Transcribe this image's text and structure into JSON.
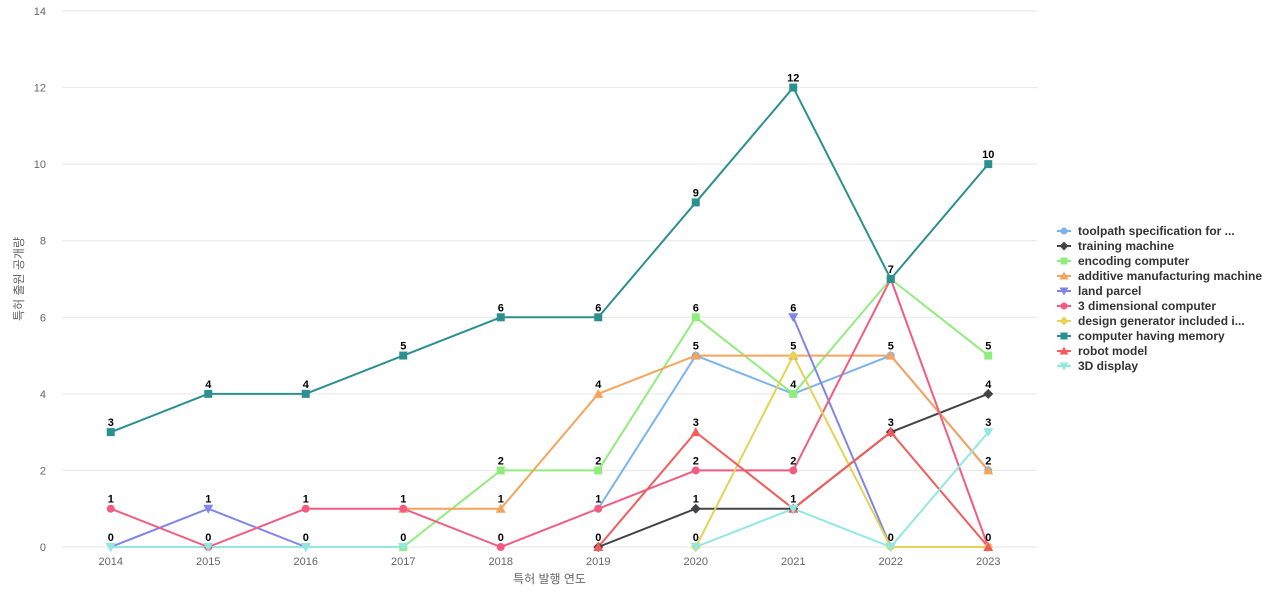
{
  "chart_data": {
    "type": "line",
    "title": "",
    "xlabel": "특허 발행 연도",
    "ylabel": "특허 출원 공개량",
    "ylim": [
      0,
      14
    ],
    "yticks": [
      0,
      2,
      4,
      6,
      8,
      10,
      12,
      14
    ],
    "grid": true,
    "legend_position": "right",
    "categories": [
      "2014",
      "2015",
      "2016",
      "2017",
      "2018",
      "2019",
      "2020",
      "2021",
      "2022",
      "2023"
    ],
    "series": [
      {
        "name": "toolpath specification for ...",
        "color": "#7cb5ec",
        "marker": "circle",
        "values": [
          null,
          null,
          null,
          null,
          null,
          1,
          5,
          4,
          5,
          2
        ]
      },
      {
        "name": "training machine",
        "color": "#434348",
        "marker": "diamond",
        "values": [
          null,
          null,
          null,
          null,
          null,
          0,
          1,
          1,
          3,
          4
        ]
      },
      {
        "name": "encoding computer",
        "color": "#90ed7d",
        "marker": "square",
        "values": [
          null,
          null,
          null,
          0,
          2,
          2,
          6,
          4,
          7,
          5
        ]
      },
      {
        "name": "additive manufacturing machine",
        "color": "#f7a35c",
        "marker": "triangle",
        "values": [
          null,
          null,
          null,
          1,
          1,
          4,
          5,
          5,
          5,
          2
        ]
      },
      {
        "name": "land parcel",
        "color": "#8085e9",
        "marker": "triangle-down",
        "values": [
          0,
          1,
          0,
          null,
          null,
          null,
          null,
          6,
          0,
          null
        ]
      },
      {
        "name": "3 dimensional computer",
        "color": "#f15c80",
        "marker": "circle",
        "values": [
          1,
          0,
          1,
          1,
          0,
          1,
          2,
          2,
          7,
          0
        ]
      },
      {
        "name": "design generator included i...",
        "color": "#e4d354",
        "marker": "diamond",
        "values": [
          null,
          null,
          null,
          null,
          null,
          null,
          0,
          5,
          0,
          0
        ]
      },
      {
        "name": "computer having memory",
        "color": "#2b908f",
        "marker": "square",
        "values": [
          3,
          4,
          4,
          5,
          6,
          6,
          9,
          12,
          7,
          10
        ]
      },
      {
        "name": "robot model",
        "color": "#f45b5b",
        "marker": "triangle",
        "values": [
          null,
          null,
          null,
          null,
          null,
          0,
          3,
          1,
          3,
          0
        ]
      },
      {
        "name": "3D display",
        "color": "#91e8e1",
        "marker": "triangle-down",
        "values": [
          0,
          0,
          0,
          0,
          null,
          null,
          0,
          1,
          0,
          3
        ]
      }
    ],
    "data_labels": [
      {
        "category": "2014",
        "series": "computer having memory",
        "text": "3"
      },
      {
        "category": "2014",
        "series": "3 dimensional computer",
        "text": "1"
      },
      {
        "category": "2014",
        "series": "land parcel",
        "text": "0"
      },
      {
        "category": "2015",
        "series": "computer having memory",
        "text": "4"
      },
      {
        "category": "2015",
        "series": "land parcel",
        "text": "1"
      },
      {
        "category": "2015",
        "series": "3 dimensional computer",
        "text": "0"
      },
      {
        "category": "2016",
        "series": "computer having memory",
        "text": "4"
      },
      {
        "category": "2016",
        "series": "3 dimensional computer",
        "text": "1"
      },
      {
        "category": "2016",
        "series": "land parcel",
        "text": "0"
      },
      {
        "category": "2017",
        "series": "computer having memory",
        "text": "5"
      },
      {
        "category": "2017",
        "series": "3 dimensional computer",
        "text": "1"
      },
      {
        "category": "2017",
        "series": "encoding computer",
        "text": "0"
      },
      {
        "category": "2018",
        "series": "computer having memory",
        "text": "6"
      },
      {
        "category": "2018",
        "series": "encoding computer",
        "text": "2"
      },
      {
        "category": "2018",
        "series": "additive manufacturing machine",
        "text": "1"
      },
      {
        "category": "2018",
        "series": "3 dimensional computer",
        "text": "0"
      },
      {
        "category": "2019",
        "series": "computer having memory",
        "text": "6"
      },
      {
        "category": "2019",
        "series": "additive manufacturing machine",
        "text": "4"
      },
      {
        "category": "2019",
        "series": "encoding computer",
        "text": "2"
      },
      {
        "category": "2019",
        "series": "toolpath specification for ...",
        "text": "1"
      },
      {
        "category": "2019",
        "series": "training machine",
        "text": "0"
      },
      {
        "category": "2020",
        "series": "computer having memory",
        "text": "9"
      },
      {
        "category": "2020",
        "series": "encoding computer",
        "text": "6"
      },
      {
        "category": "2020",
        "series": "additive manufacturing machine",
        "text": "5"
      },
      {
        "category": "2020",
        "series": "robot model",
        "text": "3"
      },
      {
        "category": "2020",
        "series": "3 dimensional computer",
        "text": "2"
      },
      {
        "category": "2020",
        "series": "training machine",
        "text": "1"
      },
      {
        "category": "2020",
        "series": "3D display",
        "text": "0"
      },
      {
        "category": "2021",
        "series": "computer having memory",
        "text": "12"
      },
      {
        "category": "2021",
        "series": "land parcel",
        "text": "6"
      },
      {
        "category": "2021",
        "series": "design generator included i...",
        "text": "5"
      },
      {
        "category": "2021",
        "series": "encoding computer",
        "text": "4"
      },
      {
        "category": "2021",
        "series": "3 dimensional computer",
        "text": "2"
      },
      {
        "category": "2021",
        "series": "training machine",
        "text": "1"
      },
      {
        "category": "2022",
        "series": "encoding computer",
        "text": "7"
      },
      {
        "category": "2022",
        "series": "toolpath specification for ...",
        "text": "5"
      },
      {
        "category": "2022",
        "series": "training machine",
        "text": "3"
      },
      {
        "category": "2022",
        "series": "land parcel",
        "text": "0"
      },
      {
        "category": "2023",
        "series": "computer having memory",
        "text": "10"
      },
      {
        "category": "2023",
        "series": "encoding computer",
        "text": "5"
      },
      {
        "category": "2023",
        "series": "training machine",
        "text": "4"
      },
      {
        "category": "2023",
        "series": "3D display",
        "text": "3"
      },
      {
        "category": "2023",
        "series": "toolpath specification for ...",
        "text": "2"
      },
      {
        "category": "2023",
        "series": "3 dimensional computer",
        "text": "0"
      }
    ]
  }
}
